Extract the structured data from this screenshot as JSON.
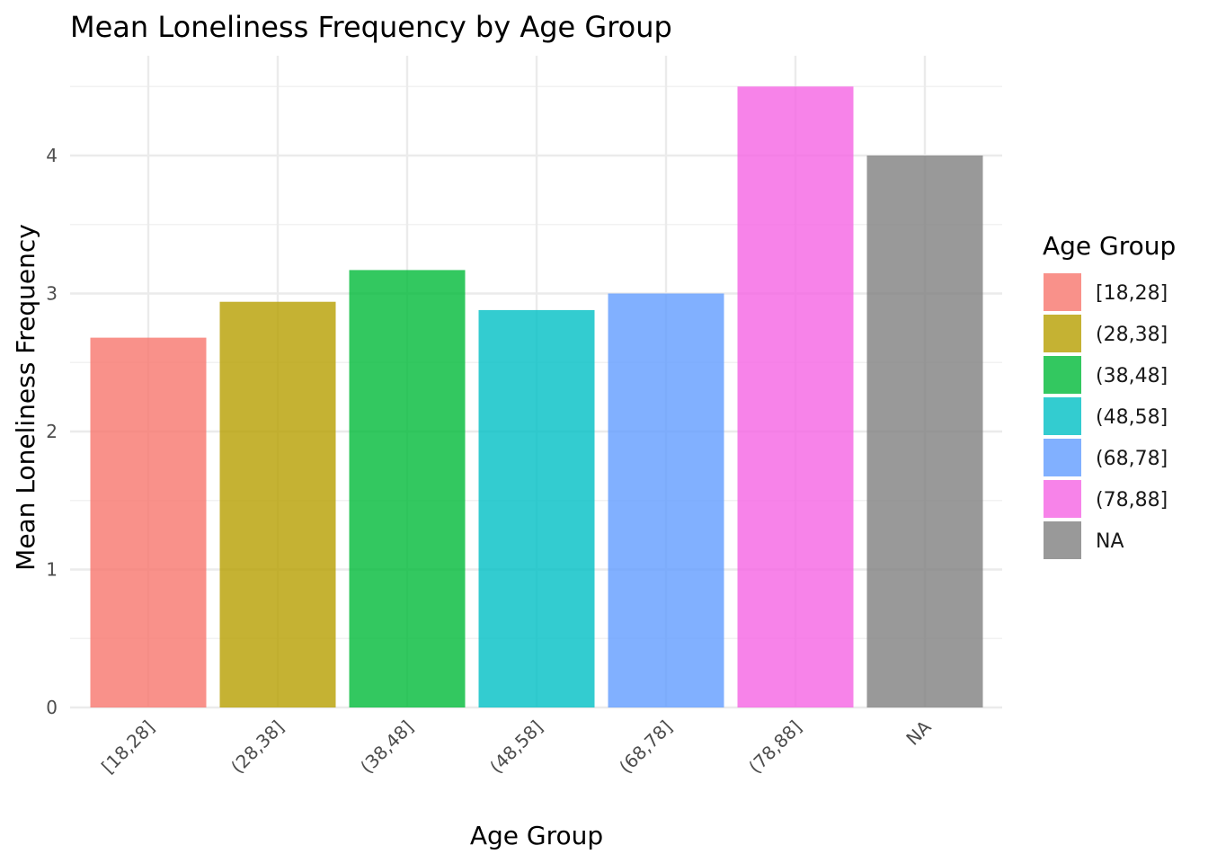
{
  "chart_data": {
    "type": "bar",
    "title": "Mean Loneliness Frequency by Age Group",
    "xlabel": "Age Group",
    "ylabel": "Mean Loneliness Frequency",
    "categories": [
      "[18,28]",
      "(28,38]",
      "(38,48]",
      "(48,58]",
      "(68,78]",
      "(78,88]",
      "NA"
    ],
    "values": [
      2.68,
      2.94,
      3.17,
      2.88,
      3.0,
      4.5,
      4.0
    ],
    "colors": [
      "#F8766D",
      "#B79F00",
      "#00BA38",
      "#00BFC4",
      "#619CFF",
      "#F564E3",
      "#808080"
    ],
    "ylim": [
      0,
      4.73
    ],
    "yticks": [
      0,
      1,
      2,
      3,
      4
    ],
    "grid": true,
    "legend": {
      "title": "Age Group",
      "placement": "right",
      "entries": [
        "[18,28]",
        "(28,38]",
        "(38,48]",
        "(48,58]",
        "(68,78]",
        "(78,88]",
        "NA"
      ]
    }
  }
}
